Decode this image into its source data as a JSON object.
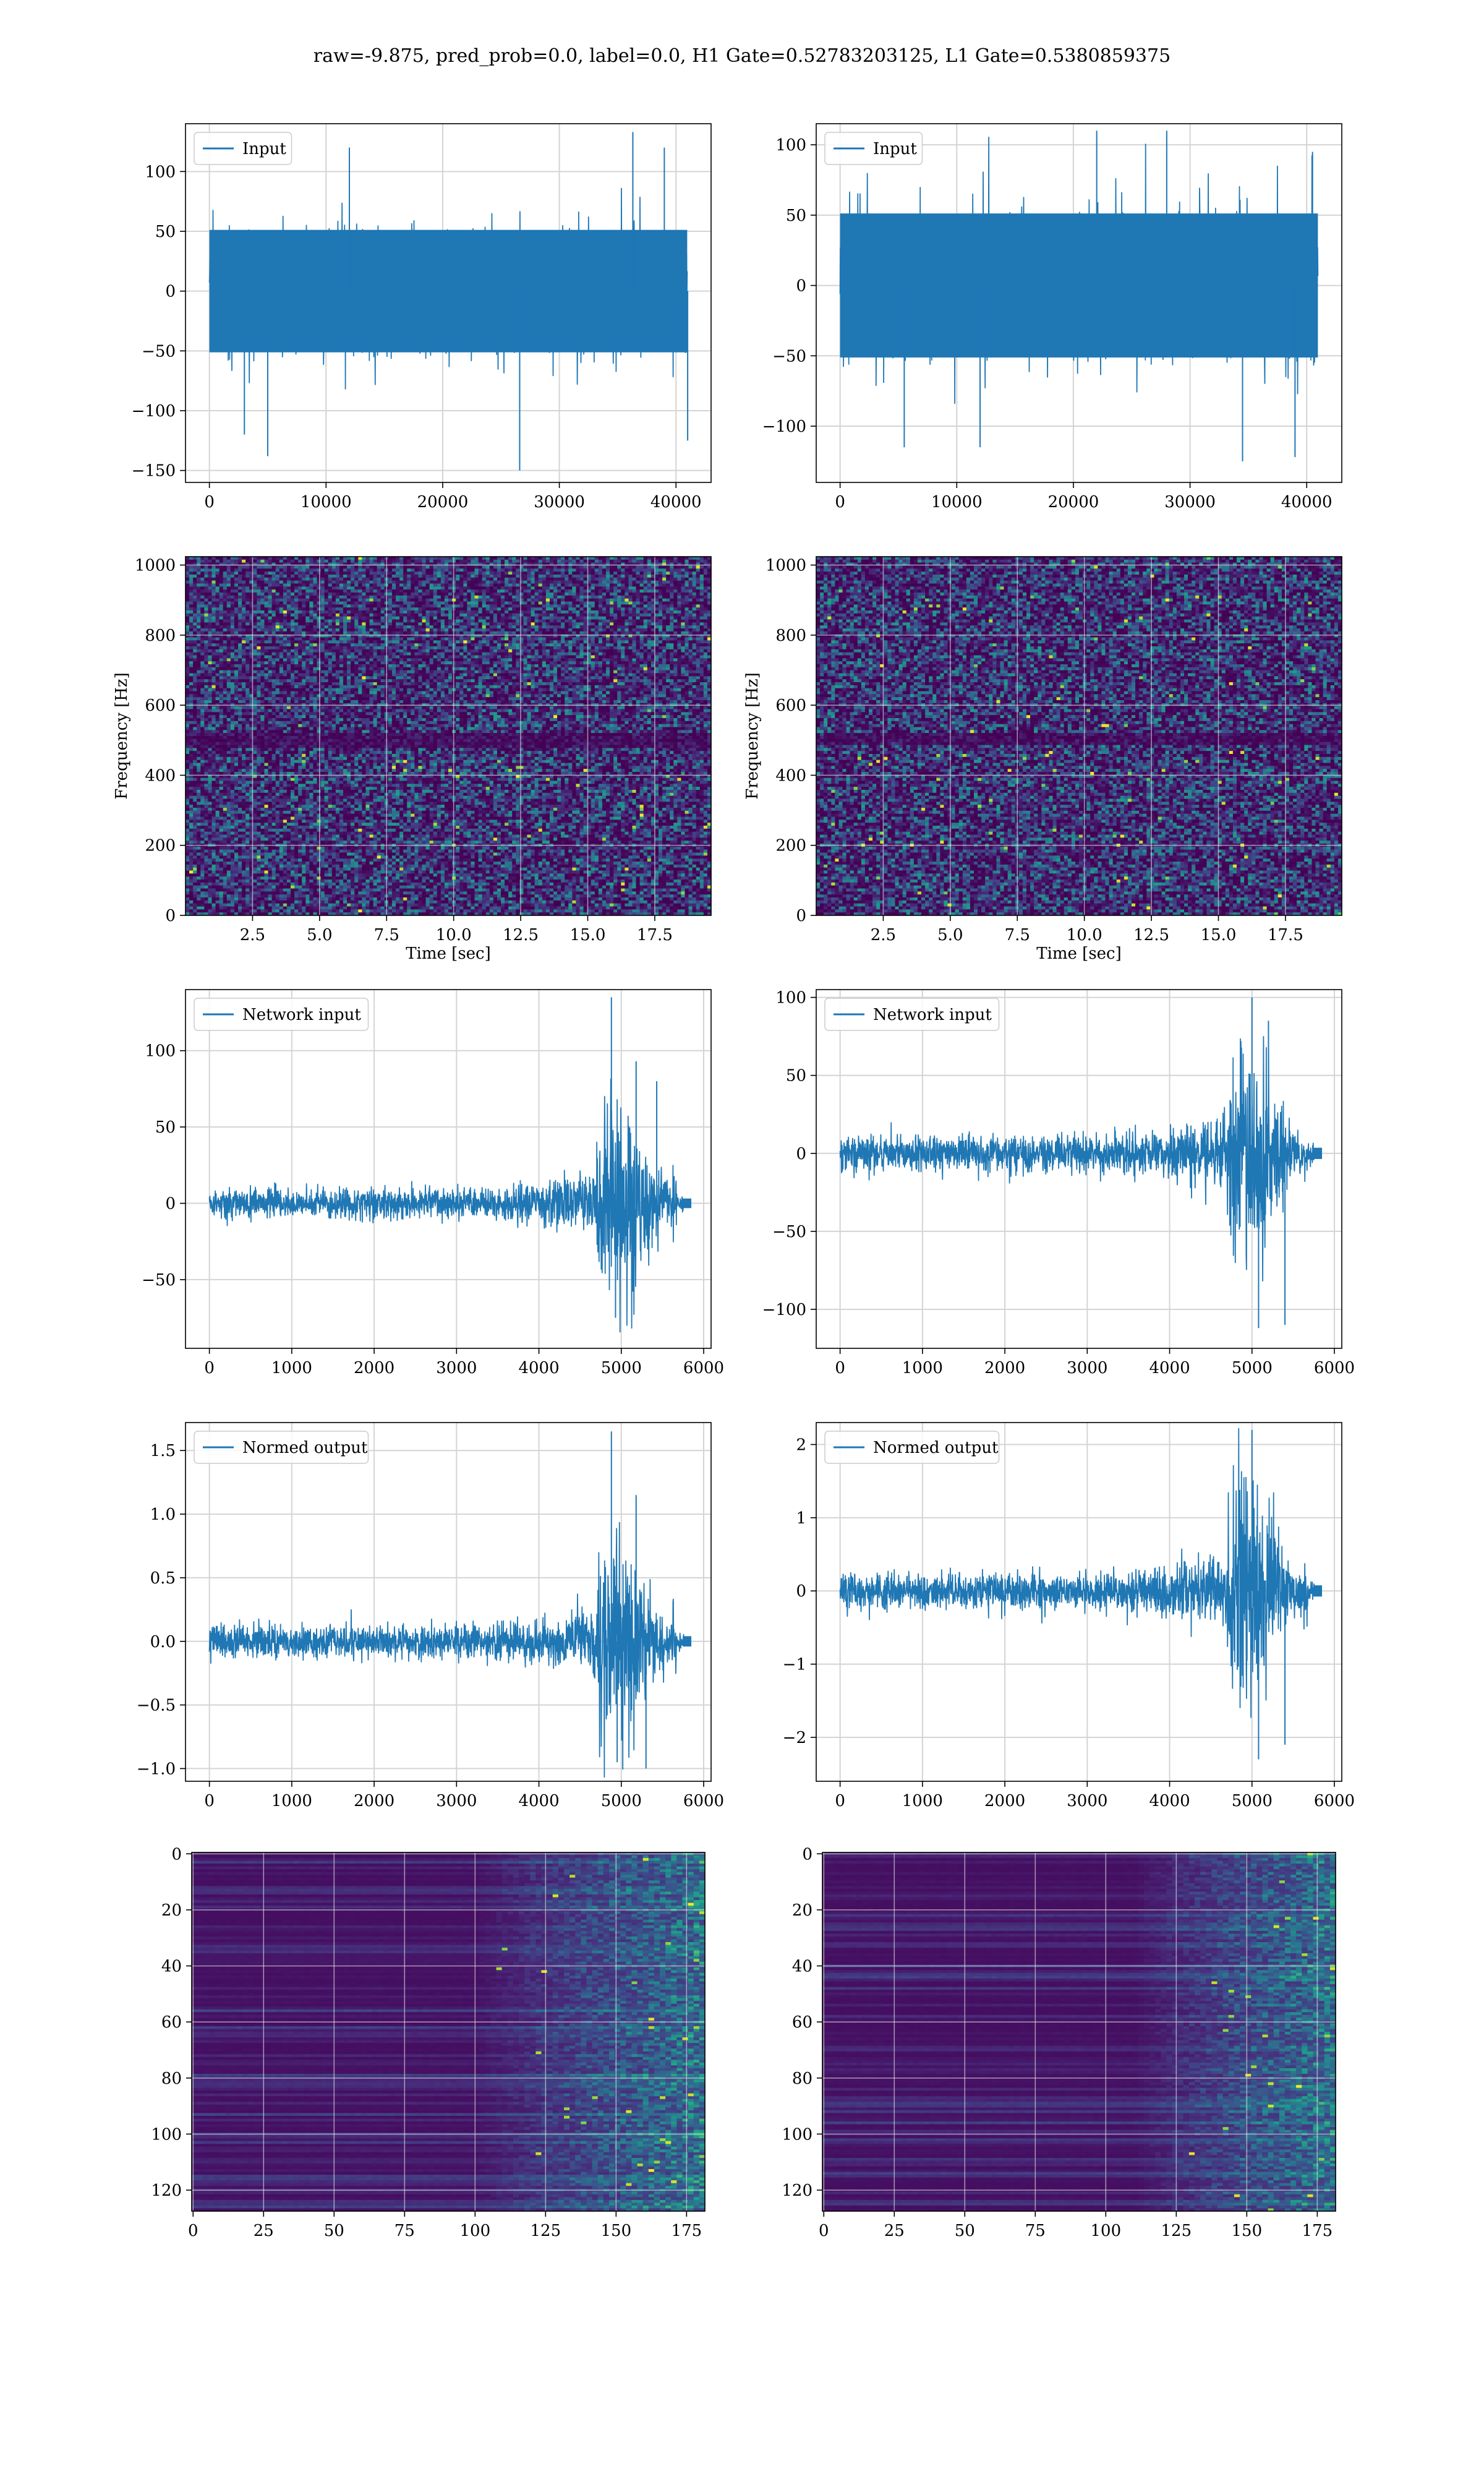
{
  "figure_title": "raw=-9.875, pred_prob=0.0, label=0.0, H1 Gate=0.52783203125, L1 Gate=0.5380859375",
  "colors": {
    "line": "#1f77b4",
    "grid": "#d4d4d4",
    "axes": "#000000"
  },
  "chart_data": [
    {
      "id": "input-h1",
      "type": "line",
      "row": 0,
      "col": 0,
      "legend": "Input",
      "legend_position": "top-left",
      "xlim": [
        -2048,
        43008
      ],
      "ylim": [
        -160,
        140
      ],
      "xticks": [
        0,
        10000,
        20000,
        30000,
        40000
      ],
      "yticks": [
        -150,
        -100,
        -50,
        0,
        50,
        100
      ],
      "signal": {
        "kind": "noise",
        "x_start": 0,
        "x_end": 40960,
        "amplitude": 32,
        "spikes": [
          [
            3000,
            -120
          ],
          [
            5000,
            -138
          ],
          [
            12000,
            120
          ],
          [
            26600,
            -150
          ],
          [
            36300,
            133
          ],
          [
            39000,
            120
          ],
          [
            41000,
            -125
          ]
        ]
      },
      "grid": true
    },
    {
      "id": "input-l1",
      "type": "line",
      "row": 0,
      "col": 1,
      "legend": "Input",
      "legend_position": "top-left",
      "xlim": [
        -2048,
        43008
      ],
      "ylim": [
        -140,
        115
      ],
      "xticks": [
        0,
        10000,
        20000,
        30000,
        40000
      ],
      "yticks": [
        -100,
        -50,
        0,
        50,
        100
      ],
      "signal": {
        "kind": "noise",
        "x_start": 0,
        "x_end": 40960,
        "amplitude": 32,
        "spikes": [
          [
            5500,
            -115
          ],
          [
            12000,
            -115
          ],
          [
            22000,
            110
          ],
          [
            28000,
            110
          ],
          [
            34500,
            -125
          ],
          [
            39000,
            -122
          ],
          [
            40500,
            95
          ]
        ]
      },
      "grid": true
    },
    {
      "id": "spectrogram-h1",
      "type": "heatmap",
      "row": 1,
      "col": 0,
      "xlabel": "Time [sec]",
      "ylabel": "Frequency [Hz]",
      "xlim": [
        0,
        19.6
      ],
      "ylim": [
        0,
        1024
      ],
      "xticks": [
        2.5,
        5.0,
        7.5,
        10.0,
        12.5,
        15.0,
        17.5
      ],
      "yticks": [
        0,
        200,
        400,
        600,
        800,
        1000
      ],
      "colormap": "viridis",
      "dark_band_hz": [
        480,
        520
      ],
      "grid": true
    },
    {
      "id": "spectrogram-l1",
      "type": "heatmap",
      "row": 1,
      "col": 1,
      "xlabel": "Time [sec]",
      "ylabel": "Frequency [Hz]",
      "xlim": [
        0,
        19.6
      ],
      "ylim": [
        0,
        1024
      ],
      "xticks": [
        2.5,
        5.0,
        7.5,
        10.0,
        12.5,
        15.0,
        17.5
      ],
      "yticks": [
        0,
        200,
        400,
        600,
        800,
        1000
      ],
      "colormap": "viridis",
      "dark_band_hz": [
        490,
        520
      ],
      "grid": true
    },
    {
      "id": "network-input-h1",
      "type": "line",
      "row": 2,
      "col": 0,
      "legend": "Network input",
      "legend_position": "top-left",
      "xlim": [
        -290,
        6090
      ],
      "ylim": [
        -95,
        140
      ],
      "xticks": [
        0,
        1000,
        2000,
        3000,
        4000,
        5000,
        6000
      ],
      "yticks": [
        -50,
        0,
        50,
        100
      ],
      "signal": {
        "kind": "chirp",
        "x_start": 0,
        "x_end": 5760,
        "base": 7,
        "growth_start": 3400,
        "burst_start": 4700,
        "burst_amp": 40,
        "spikes": [
          [
            4880,
            135
          ],
          [
            4930,
            -75
          ],
          [
            5180,
            93
          ],
          [
            5430,
            80
          ]
        ]
      },
      "grid": true
    },
    {
      "id": "network-input-l1",
      "type": "line",
      "row": 2,
      "col": 1,
      "legend": "Network input",
      "legend_position": "top-left",
      "xlim": [
        -290,
        6090
      ],
      "ylim": [
        -125,
        105
      ],
      "xticks": [
        0,
        1000,
        2000,
        3000,
        4000,
        5000,
        6000
      ],
      "yticks": [
        -100,
        -50,
        0,
        50,
        100
      ],
      "signal": {
        "kind": "chirp",
        "x_start": 0,
        "x_end": 5760,
        "base": 8,
        "growth_start": 3400,
        "burst_start": 4700,
        "burst_amp": 42,
        "spikes": [
          [
            5000,
            100
          ],
          [
            5080,
            -112
          ],
          [
            5200,
            85
          ],
          [
            5400,
            -110
          ]
        ]
      },
      "grid": true
    },
    {
      "id": "normed-output-h1",
      "type": "line",
      "row": 3,
      "col": 0,
      "legend": "Normed output",
      "legend_position": "top-left",
      "xlim": [
        -290,
        6090
      ],
      "ylim": [
        -1.1,
        1.72
      ],
      "xticks": [
        0,
        1000,
        2000,
        3000,
        4000,
        5000,
        6000
      ],
      "yticks": [
        -1.0,
        -0.5,
        0.0,
        0.5,
        1.0,
        1.5
      ],
      "signal": {
        "kind": "chirp",
        "x_start": 0,
        "x_end": 5760,
        "base": 0.09,
        "growth_start": 3400,
        "burst_start": 4700,
        "burst_amp": 0.5,
        "spikes": [
          [
            4880,
            1.65
          ],
          [
            4950,
            -0.95
          ],
          [
            5180,
            1.15
          ],
          [
            5300,
            -1.0
          ]
        ]
      },
      "grid": true
    },
    {
      "id": "normed-output-l1",
      "type": "line",
      "row": 3,
      "col": 1,
      "legend": "Normed output",
      "legend_position": "top-left",
      "xlim": [
        -290,
        6090
      ],
      "ylim": [
        -2.6,
        2.3
      ],
      "xticks": [
        0,
        1000,
        2000,
        3000,
        4000,
        5000,
        6000
      ],
      "yticks": [
        -2,
        -1,
        0,
        1,
        2
      ],
      "signal": {
        "kind": "chirp",
        "x_start": 0,
        "x_end": 5760,
        "base": 0.17,
        "growth_start": 3400,
        "burst_start": 4700,
        "burst_amp": 0.95,
        "spikes": [
          [
            5000,
            2.2
          ],
          [
            5080,
            -2.3
          ],
          [
            5400,
            -2.1
          ]
        ]
      },
      "grid": true
    },
    {
      "id": "feature-map-h1",
      "type": "heatmap",
      "row": 4,
      "col": 0,
      "xlim": [
        -0.5,
        181.5
      ],
      "ylim": [
        127.5,
        -0.5
      ],
      "xticks": [
        0,
        25,
        50,
        75,
        100,
        125,
        150,
        175
      ],
      "yticks": [
        0,
        20,
        40,
        60,
        80,
        100,
        120
      ],
      "colormap": "viridis",
      "activity_start": 100,
      "grid": true
    },
    {
      "id": "feature-map-l1",
      "type": "heatmap",
      "row": 4,
      "col": 1,
      "xlim": [
        -0.5,
        181.5
      ],
      "ylim": [
        127.5,
        -0.5
      ],
      "xticks": [
        0,
        25,
        50,
        75,
        100,
        125,
        150,
        175
      ],
      "yticks": [
        0,
        20,
        40,
        60,
        80,
        100,
        120
      ],
      "colormap": "viridis",
      "activity_start": 110,
      "grid": true
    }
  ]
}
